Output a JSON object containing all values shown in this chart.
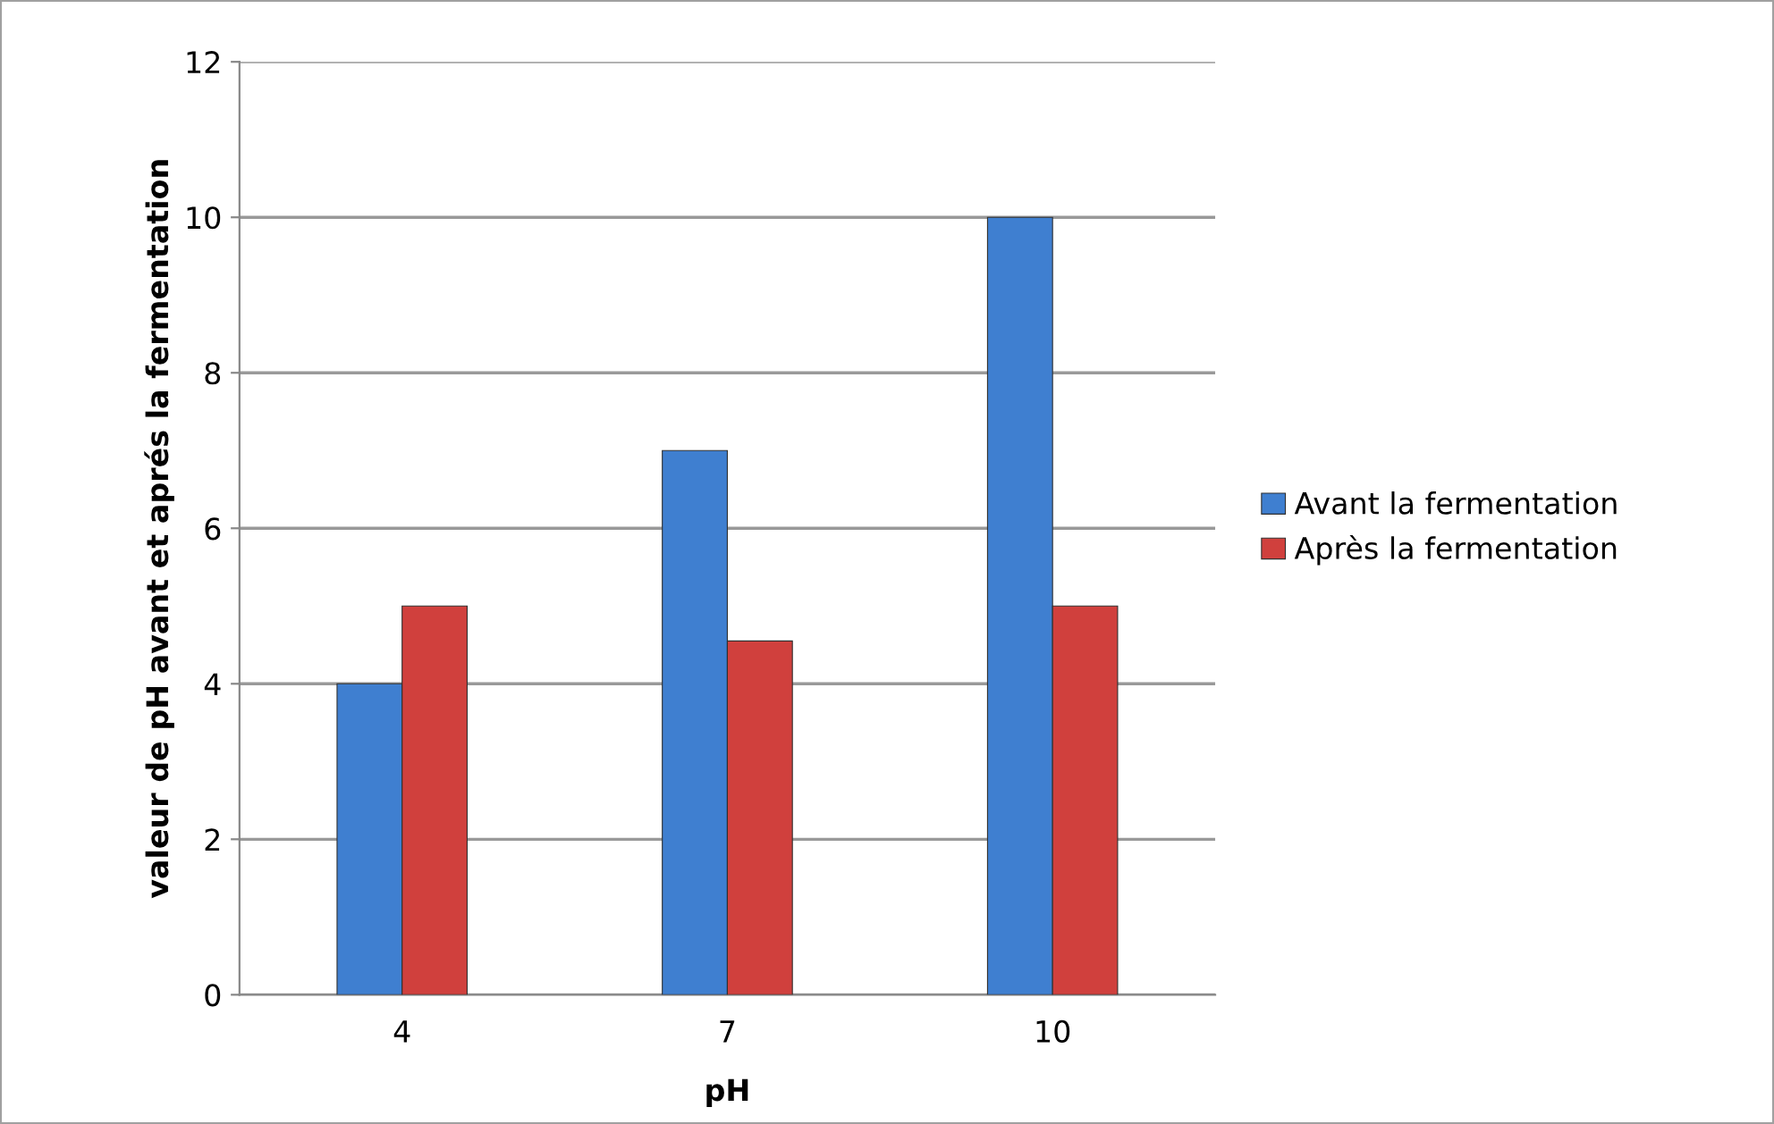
{
  "chart_data": {
    "type": "bar",
    "xlabel": "pH",
    "ylabel": "valeur de pH avant et aprés la fermentation",
    "categories": [
      "4",
      "7",
      "10"
    ],
    "series": [
      {
        "name": "Avant la fermentation",
        "color": "#3f7fd0",
        "values": [
          4,
          7,
          10
        ]
      },
      {
        "name": "Après la fermentation",
        "color": "#d0403d",
        "values": [
          5.0,
          4.55,
          5.0
        ]
      }
    ],
    "ylim": [
      0,
      12
    ],
    "yticks": [
      0,
      2,
      4,
      6,
      8,
      10,
      12
    ],
    "grid": "y",
    "legend": "right"
  }
}
